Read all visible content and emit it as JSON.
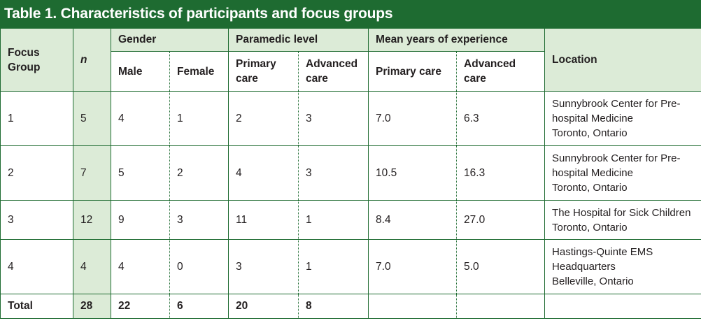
{
  "title": "Table 1. Characteristics of participants and focus groups",
  "headers": {
    "focus_group": "Focus Group",
    "n": "n",
    "gender": "Gender",
    "paramedic_level": "Paramedic level",
    "mean_years": "Mean years of experience",
    "location": "Location",
    "male": "Male",
    "female": "Female",
    "primary_care": "Primary care",
    "advanced_care": "Advanced care",
    "primary_care_years": "Primary care",
    "advanced_care_years": "Advanced care"
  },
  "rows": [
    {
      "group": "1",
      "n": "5",
      "male": "4",
      "female": "1",
      "primary": "2",
      "advanced": "3",
      "yrs_primary": "7.0",
      "yrs_advanced": "6.3",
      "location": [
        "Sunnybrook Center for Pre-",
        "hospital Medicine",
        "Toronto, Ontario"
      ]
    },
    {
      "group": "2",
      "n": "7",
      "male": "5",
      "female": "2",
      "primary": "4",
      "advanced": "3",
      "yrs_primary": "10.5",
      "yrs_advanced": "16.3",
      "location": [
        "Sunnybrook Center for Pre-",
        "hospital Medicine",
        "Toronto, Ontario"
      ]
    },
    {
      "group": "3",
      "n": "12",
      "male": "9",
      "female": "3",
      "primary": "11",
      "advanced": "1",
      "yrs_primary": "8.4",
      "yrs_advanced": "27.0",
      "location": [
        "The Hospital for Sick Children",
        "Toronto, Ontario"
      ]
    },
    {
      "group": "4",
      "n": "4",
      "male": "4",
      "female": "0",
      "primary": "3",
      "advanced": "1",
      "yrs_primary": "7.0",
      "yrs_advanced": "5.0",
      "location": [
        "Hastings-Quinte EMS",
        "Headquarters",
        "Belleville, Ontario"
      ]
    }
  ],
  "total": {
    "label": "Total",
    "n": "28",
    "male": "22",
    "female": "6",
    "primary": "20",
    "advanced": "8"
  }
}
